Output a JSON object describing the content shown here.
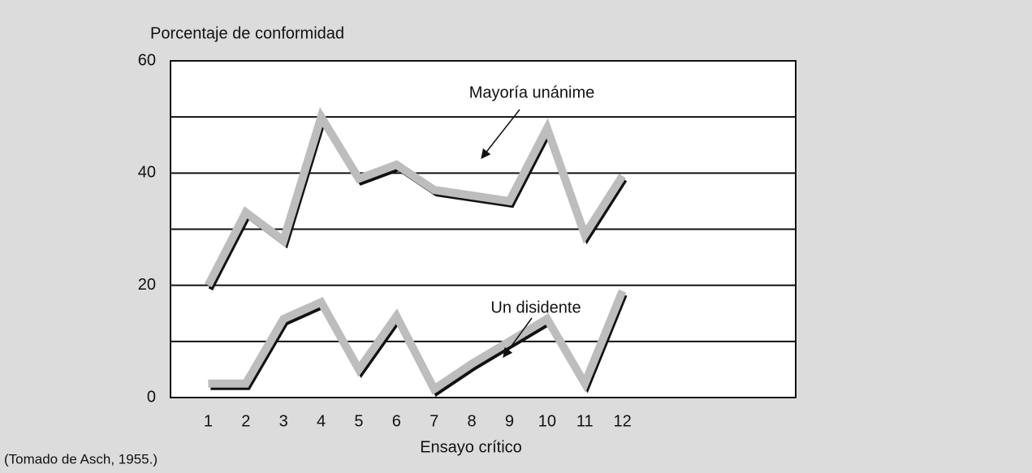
{
  "chart_data": {
    "type": "line",
    "y_axis_label": "Porcentaje de conformidad",
    "x_axis_label": "Ensayo crítico",
    "source": "(Tomado de Asch, 1955.)",
    "x": [
      1,
      2,
      3,
      4,
      5,
      6,
      7,
      8,
      9,
      10,
      11,
      12
    ],
    "series": [
      {
        "name": "Mayoría unánime",
        "color": "#bdbdbd",
        "values": [
          20,
          33,
          28,
          50,
          39,
          41.5,
          37,
          36,
          35,
          48,
          29,
          39.5
        ]
      },
      {
        "name": "Un disidente",
        "color": "#bdbdbd",
        "values": [
          2.5,
          2.5,
          14,
          17,
          5,
          14.5,
          1.5,
          6,
          10,
          14,
          2.5,
          19
        ]
      }
    ],
    "shadow_color": "#111111",
    "xlim": [
      0,
      16.6
    ],
    "xticks": [
      1,
      2,
      3,
      4,
      5,
      6,
      7,
      8,
      9,
      10,
      11,
      12
    ],
    "ylim": [
      0,
      60
    ],
    "yticks": [
      0,
      20,
      40,
      60
    ],
    "minor_yticks": [
      10,
      30,
      50
    ],
    "grid": true
  }
}
